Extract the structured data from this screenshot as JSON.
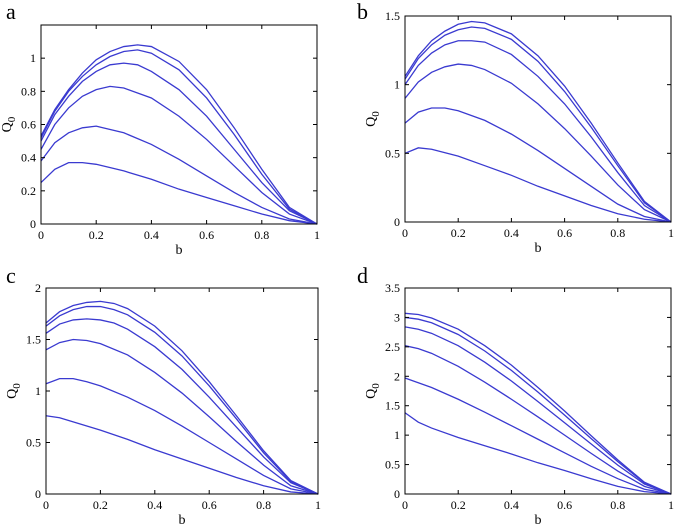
{
  "figure": {
    "line_color": "#3a3ad0"
  },
  "chart_data": [
    {
      "panel": "a",
      "type": "line",
      "xlabel": "b",
      "ylabel": "Q",
      "ylabel_sub": "0",
      "xlim": [
        0,
        1
      ],
      "ylim": [
        0,
        1.2
      ],
      "xticks": [
        0,
        0.2,
        0.4,
        0.6,
        0.8,
        1
      ],
      "xtick_labels": [
        "0",
        "0.2",
        "0.4",
        "0.6",
        "0.8",
        "1"
      ],
      "yticks": [
        0,
        0.2,
        0.4,
        0.6,
        0.8,
        1
      ],
      "ytick_labels": [
        "0",
        "0.2",
        "0.4",
        "0.6",
        "0.8",
        "1"
      ],
      "grid": false,
      "series": [
        {
          "x": [
            0,
            0.05,
            0.1,
            0.15,
            0.2,
            0.3,
            0.4,
            0.5,
            0.6,
            0.7,
            0.8,
            0.9,
            1.0
          ],
          "y": [
            0.25,
            0.33,
            0.37,
            0.37,
            0.36,
            0.32,
            0.27,
            0.21,
            0.16,
            0.11,
            0.06,
            0.02,
            0
          ]
        },
        {
          "x": [
            0,
            0.05,
            0.1,
            0.15,
            0.2,
            0.3,
            0.4,
            0.5,
            0.6,
            0.7,
            0.8,
            0.9,
            1.0
          ],
          "y": [
            0.38,
            0.49,
            0.55,
            0.58,
            0.59,
            0.55,
            0.48,
            0.39,
            0.29,
            0.19,
            0.1,
            0.03,
            0
          ]
        },
        {
          "x": [
            0,
            0.05,
            0.1,
            0.15,
            0.2,
            0.25,
            0.3,
            0.4,
            0.5,
            0.6,
            0.7,
            0.8,
            0.9,
            1.0
          ],
          "y": [
            0.45,
            0.6,
            0.7,
            0.77,
            0.81,
            0.83,
            0.82,
            0.76,
            0.65,
            0.51,
            0.35,
            0.19,
            0.06,
            0
          ]
        },
        {
          "x": [
            0,
            0.05,
            0.1,
            0.15,
            0.2,
            0.25,
            0.3,
            0.35,
            0.4,
            0.5,
            0.6,
            0.7,
            0.8,
            0.9,
            1.0
          ],
          "y": [
            0.5,
            0.66,
            0.77,
            0.86,
            0.92,
            0.96,
            0.97,
            0.96,
            0.92,
            0.81,
            0.65,
            0.45,
            0.25,
            0.08,
            0
          ]
        },
        {
          "x": [
            0,
            0.05,
            0.1,
            0.15,
            0.2,
            0.25,
            0.3,
            0.35,
            0.4,
            0.5,
            0.6,
            0.7,
            0.8,
            0.9,
            1.0
          ],
          "y": [
            0.52,
            0.68,
            0.8,
            0.89,
            0.96,
            1.01,
            1.04,
            1.05,
            1.03,
            0.93,
            0.76,
            0.54,
            0.3,
            0.09,
            0
          ]
        },
        {
          "x": [
            0,
            0.05,
            0.1,
            0.15,
            0.2,
            0.25,
            0.3,
            0.35,
            0.4,
            0.5,
            0.6,
            0.7,
            0.8,
            0.9,
            1.0
          ],
          "y": [
            0.53,
            0.69,
            0.81,
            0.91,
            0.99,
            1.04,
            1.07,
            1.08,
            1.07,
            0.98,
            0.81,
            0.58,
            0.33,
            0.1,
            0
          ]
        }
      ]
    },
    {
      "panel": "b",
      "type": "line",
      "xlabel": "b",
      "ylabel": "Q",
      "ylabel_sub": "0",
      "xlim": [
        0,
        1
      ],
      "ylim": [
        0,
        1.5
      ],
      "xticks": [
        0,
        0.2,
        0.4,
        0.6,
        0.8,
        1
      ],
      "xtick_labels": [
        "0",
        "0.2",
        "0.4",
        "0.6",
        "0.8",
        "1"
      ],
      "yticks": [
        0,
        0.5,
        1,
        1.5
      ],
      "ytick_labels": [
        "0",
        "0.5",
        "1",
        "1.5"
      ],
      "grid": false,
      "series": [
        {
          "x": [
            0,
            0.05,
            0.1,
            0.2,
            0.3,
            0.4,
            0.5,
            0.6,
            0.7,
            0.8,
            0.9,
            1.0
          ],
          "y": [
            0.5,
            0.54,
            0.53,
            0.48,
            0.41,
            0.34,
            0.26,
            0.19,
            0.12,
            0.06,
            0.02,
            0
          ]
        },
        {
          "x": [
            0,
            0.05,
            0.1,
            0.15,
            0.2,
            0.3,
            0.4,
            0.5,
            0.6,
            0.7,
            0.8,
            0.9,
            1.0
          ],
          "y": [
            0.72,
            0.8,
            0.83,
            0.83,
            0.81,
            0.74,
            0.64,
            0.52,
            0.39,
            0.26,
            0.13,
            0.04,
            0
          ]
        },
        {
          "x": [
            0,
            0.05,
            0.1,
            0.15,
            0.2,
            0.25,
            0.3,
            0.4,
            0.5,
            0.6,
            0.7,
            0.8,
            0.9,
            1.0
          ],
          "y": [
            0.9,
            1.02,
            1.09,
            1.13,
            1.15,
            1.14,
            1.11,
            1.01,
            0.86,
            0.68,
            0.48,
            0.27,
            0.09,
            0
          ]
        },
        {
          "x": [
            0,
            0.05,
            0.1,
            0.15,
            0.2,
            0.25,
            0.3,
            0.4,
            0.5,
            0.6,
            0.7,
            0.8,
            0.9,
            1.0
          ],
          "y": [
            1.0,
            1.14,
            1.23,
            1.29,
            1.32,
            1.32,
            1.31,
            1.22,
            1.06,
            0.86,
            0.62,
            0.36,
            0.12,
            0
          ]
        },
        {
          "x": [
            0,
            0.05,
            0.1,
            0.15,
            0.2,
            0.25,
            0.3,
            0.4,
            0.5,
            0.6,
            0.7,
            0.8,
            0.9,
            1.0
          ],
          "y": [
            1.04,
            1.19,
            1.29,
            1.36,
            1.4,
            1.42,
            1.41,
            1.33,
            1.17,
            0.95,
            0.69,
            0.41,
            0.14,
            0
          ]
        },
        {
          "x": [
            0,
            0.05,
            0.1,
            0.15,
            0.2,
            0.25,
            0.3,
            0.4,
            0.5,
            0.6,
            0.7,
            0.8,
            0.9,
            1.0
          ],
          "y": [
            1.06,
            1.21,
            1.32,
            1.39,
            1.44,
            1.46,
            1.45,
            1.37,
            1.21,
            0.99,
            0.72,
            0.43,
            0.15,
            0
          ]
        }
      ]
    },
    {
      "panel": "c",
      "type": "line",
      "xlabel": "b",
      "ylabel": "Q",
      "ylabel_sub": "0",
      "xlim": [
        0,
        1
      ],
      "ylim": [
        0,
        2
      ],
      "xticks": [
        0,
        0.2,
        0.4,
        0.6,
        0.8,
        1
      ],
      "xtick_labels": [
        "0",
        "0.2",
        "0.4",
        "0.6",
        "0.8",
        "1"
      ],
      "yticks": [
        0,
        0.5,
        1,
        1.5,
        2
      ],
      "ytick_labels": [
        "0",
        "0.5",
        "1",
        "1.5",
        "2"
      ],
      "grid": false,
      "series": [
        {
          "x": [
            0,
            0.05,
            0.1,
            0.2,
            0.3,
            0.4,
            0.5,
            0.6,
            0.7,
            0.8,
            0.9,
            1.0
          ],
          "y": [
            0.76,
            0.74,
            0.7,
            0.62,
            0.53,
            0.43,
            0.34,
            0.25,
            0.16,
            0.08,
            0.02,
            0
          ]
        },
        {
          "x": [
            0,
            0.05,
            0.1,
            0.15,
            0.2,
            0.3,
            0.4,
            0.5,
            0.6,
            0.7,
            0.8,
            0.9,
            1.0
          ],
          "y": [
            1.07,
            1.12,
            1.12,
            1.09,
            1.05,
            0.94,
            0.81,
            0.66,
            0.5,
            0.34,
            0.18,
            0.05,
            0
          ]
        },
        {
          "x": [
            0,
            0.05,
            0.1,
            0.15,
            0.2,
            0.3,
            0.4,
            0.5,
            0.6,
            0.7,
            0.8,
            0.9,
            1.0
          ],
          "y": [
            1.4,
            1.47,
            1.5,
            1.49,
            1.46,
            1.35,
            1.18,
            0.98,
            0.75,
            0.51,
            0.28,
            0.08,
            0
          ]
        },
        {
          "x": [
            0,
            0.05,
            0.1,
            0.15,
            0.2,
            0.25,
            0.3,
            0.4,
            0.5,
            0.6,
            0.7,
            0.8,
            0.9,
            1.0
          ],
          "y": [
            1.56,
            1.65,
            1.69,
            1.7,
            1.69,
            1.66,
            1.6,
            1.43,
            1.21,
            0.94,
            0.65,
            0.36,
            0.11,
            0
          ]
        },
        {
          "x": [
            0,
            0.05,
            0.1,
            0.15,
            0.2,
            0.25,
            0.3,
            0.4,
            0.5,
            0.6,
            0.7,
            0.8,
            0.9,
            1.0
          ],
          "y": [
            1.63,
            1.73,
            1.79,
            1.82,
            1.82,
            1.79,
            1.74,
            1.57,
            1.34,
            1.05,
            0.73,
            0.4,
            0.12,
            0
          ]
        },
        {
          "x": [
            0,
            0.05,
            0.1,
            0.15,
            0.2,
            0.25,
            0.3,
            0.4,
            0.5,
            0.6,
            0.7,
            0.8,
            0.9,
            1.0
          ],
          "y": [
            1.66,
            1.77,
            1.83,
            1.86,
            1.87,
            1.85,
            1.8,
            1.63,
            1.39,
            1.09,
            0.76,
            0.42,
            0.13,
            0
          ]
        }
      ]
    },
    {
      "panel": "d",
      "type": "line",
      "xlabel": "b",
      "ylabel": "Q",
      "ylabel_sub": "0",
      "xlim": [
        0,
        1
      ],
      "ylim": [
        0,
        3.5
      ],
      "xticks": [
        0,
        0.2,
        0.4,
        0.6,
        0.8,
        1
      ],
      "xtick_labels": [
        "0",
        "0.2",
        "0.4",
        "0.6",
        "0.8",
        "1"
      ],
      "yticks": [
        0,
        0.5,
        1,
        1.5,
        2,
        2.5,
        3,
        3.5
      ],
      "ytick_labels": [
        "0",
        "0.5",
        "1",
        "1.5",
        "2",
        "2.5",
        "3",
        "3.5"
      ],
      "grid": false,
      "series": [
        {
          "x": [
            0,
            0.05,
            0.1,
            0.2,
            0.3,
            0.4,
            0.5,
            0.6,
            0.7,
            0.8,
            0.9,
            1.0
          ],
          "y": [
            1.38,
            1.22,
            1.12,
            0.96,
            0.82,
            0.68,
            0.53,
            0.4,
            0.26,
            0.13,
            0.04,
            0
          ]
        },
        {
          "x": [
            0,
            0.05,
            0.1,
            0.2,
            0.3,
            0.4,
            0.5,
            0.6,
            0.7,
            0.8,
            0.9,
            1.0
          ],
          "y": [
            1.97,
            1.89,
            1.81,
            1.61,
            1.39,
            1.16,
            0.93,
            0.7,
            0.47,
            0.26,
            0.08,
            0
          ]
        },
        {
          "x": [
            0,
            0.05,
            0.1,
            0.2,
            0.3,
            0.4,
            0.5,
            0.6,
            0.7,
            0.8,
            0.9,
            1.0
          ],
          "y": [
            2.52,
            2.47,
            2.39,
            2.17,
            1.9,
            1.61,
            1.31,
            1.0,
            0.69,
            0.39,
            0.13,
            0
          ]
        },
        {
          "x": [
            0,
            0.05,
            0.1,
            0.2,
            0.3,
            0.4,
            0.5,
            0.6,
            0.7,
            0.8,
            0.9,
            1.0
          ],
          "y": [
            2.84,
            2.8,
            2.73,
            2.52,
            2.24,
            1.92,
            1.57,
            1.21,
            0.85,
            0.49,
            0.17,
            0
          ]
        },
        {
          "x": [
            0,
            0.05,
            0.1,
            0.2,
            0.3,
            0.4,
            0.5,
            0.6,
            0.7,
            0.8,
            0.9,
            1.0
          ],
          "y": [
            3.0,
            2.97,
            2.91,
            2.71,
            2.43,
            2.1,
            1.73,
            1.34,
            0.94,
            0.55,
            0.19,
            0
          ]
        },
        {
          "x": [
            0,
            0.05,
            0.1,
            0.2,
            0.3,
            0.4,
            0.5,
            0.6,
            0.7,
            0.8,
            0.9,
            1.0
          ],
          "y": [
            3.07,
            3.05,
            2.99,
            2.8,
            2.52,
            2.19,
            1.81,
            1.41,
            0.99,
            0.58,
            0.2,
            0
          ]
        }
      ]
    }
  ]
}
